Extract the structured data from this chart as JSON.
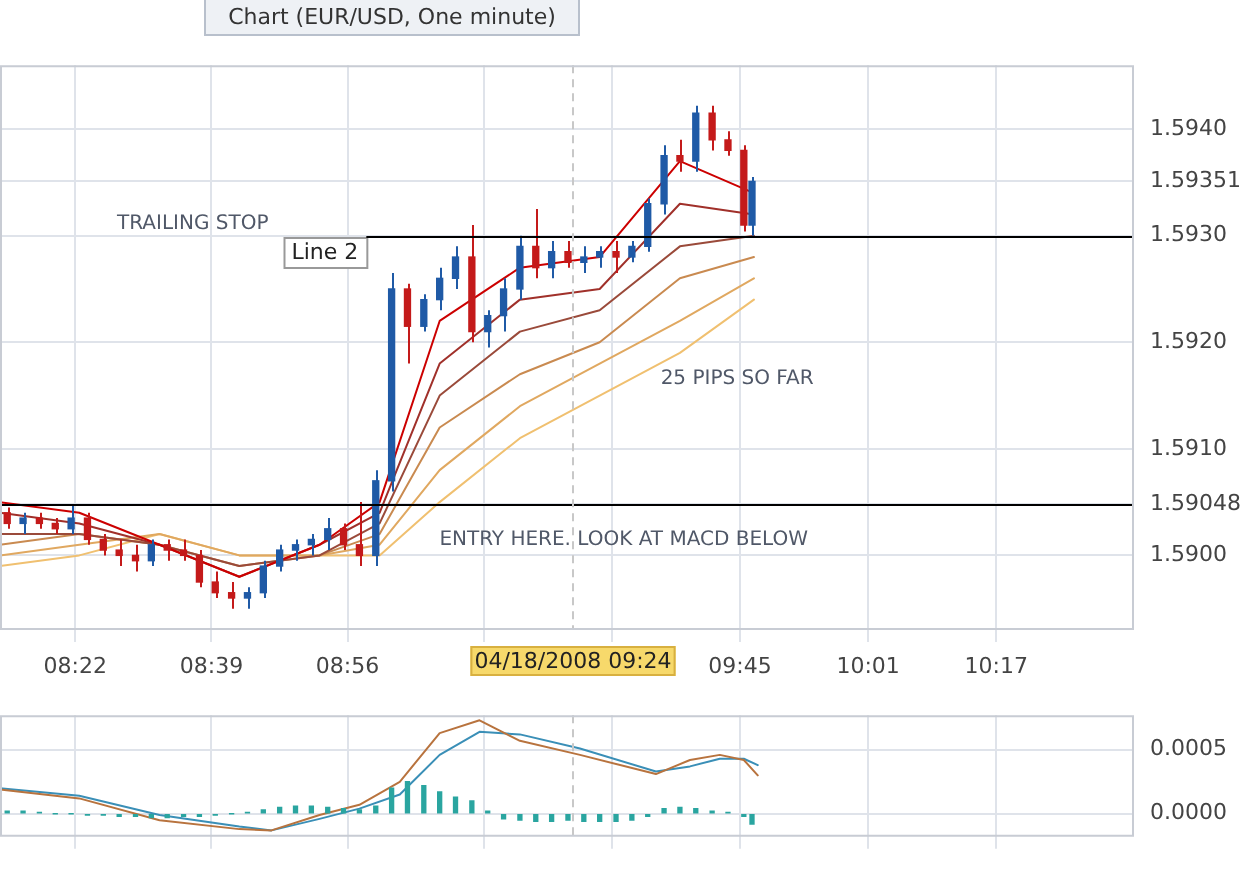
{
  "chart_data": [
    {
      "type": "candlestick",
      "title": "Chart (EUR/USD, One minute)",
      "x": [
        8.225,
        8.258,
        8.292,
        8.325,
        8.358,
        8.392,
        8.425,
        8.458,
        8.492,
        8.525,
        8.558,
        8.592,
        8.625,
        8.658,
        8.692,
        8.725,
        8.758,
        8.792,
        8.825,
        8.858,
        8.892,
        8.925,
        8.958,
        8.992,
        9.025,
        9.058,
        9.092,
        9.125,
        9.158,
        9.192,
        9.225,
        9.258,
        9.292,
        9.325,
        9.358,
        9.392,
        9.425,
        9.458,
        9.492,
        9.525,
        9.558,
        9.592,
        9.625,
        9.658,
        9.692,
        9.725,
        9.758,
        9.775
      ],
      "ohlc": [
        [
          1.5904,
          1.59045,
          1.59025,
          1.5903
        ],
        [
          1.5903,
          1.5904,
          1.5902,
          1.59035
        ],
        [
          1.59035,
          1.5904,
          1.59025,
          1.5903
        ],
        [
          1.5903,
          1.59035,
          1.5902,
          1.59025
        ],
        [
          1.59025,
          1.59048,
          1.5902,
          1.59035
        ],
        [
          1.59035,
          1.5904,
          1.5901,
          1.59015
        ],
        [
          1.59015,
          1.5902,
          1.59,
          1.59005
        ],
        [
          1.59005,
          1.59015,
          1.5899,
          1.59
        ],
        [
          1.59,
          1.5901,
          1.58985,
          1.58995
        ],
        [
          1.58995,
          1.59015,
          1.5899,
          1.5901
        ],
        [
          1.5901,
          1.59015,
          1.58995,
          1.59005
        ],
        [
          1.59005,
          1.59015,
          1.58995,
          1.59
        ],
        [
          1.59,
          1.59005,
          1.5897,
          1.58975
        ],
        [
          1.58975,
          1.58985,
          1.5896,
          1.58965
        ],
        [
          1.58965,
          1.58975,
          1.5895,
          1.5896
        ],
        [
          1.5896,
          1.5897,
          1.5895,
          1.58965
        ],
        [
          1.58965,
          1.58995,
          1.5896,
          1.5899
        ],
        [
          1.5899,
          1.5901,
          1.58985,
          1.59005
        ],
        [
          1.59005,
          1.59015,
          1.58995,
          1.5901
        ],
        [
          1.5901,
          1.5902,
          1.59,
          1.59015
        ],
        [
          1.59015,
          1.59035,
          1.59005,
          1.59025
        ],
        [
          1.59025,
          1.5903,
          1.59005,
          1.5901
        ],
        [
          1.5901,
          1.5905,
          1.5899,
          1.59
        ],
        [
          1.59,
          1.5908,
          1.5899,
          1.5907
        ],
        [
          1.5907,
          1.59265,
          1.5906,
          1.5925
        ],
        [
          1.5925,
          1.59255,
          1.5918,
          1.59215
        ],
        [
          1.59215,
          1.59245,
          1.5921,
          1.5924
        ],
        [
          1.5924,
          1.5927,
          1.5923,
          1.5926
        ],
        [
          1.5926,
          1.5929,
          1.5925,
          1.5928
        ],
        [
          1.5928,
          1.5931,
          1.592,
          1.5921
        ],
        [
          1.5921,
          1.5923,
          1.59195,
          1.59225
        ],
        [
          1.59225,
          1.5926,
          1.5921,
          1.5925
        ],
        [
          1.5925,
          1.593,
          1.5924,
          1.5929
        ],
        [
          1.5929,
          1.59325,
          1.5926,
          1.5927
        ],
        [
          1.5927,
          1.59295,
          1.5926,
          1.59285
        ],
        [
          1.59285,
          1.59295,
          1.5927,
          1.59275
        ],
        [
          1.59275,
          1.5929,
          1.59265,
          1.5928
        ],
        [
          1.5928,
          1.5929,
          1.5927,
          1.59285
        ],
        [
          1.59285,
          1.59295,
          1.59265,
          1.5928
        ],
        [
          1.5928,
          1.59295,
          1.59275,
          1.5929
        ],
        [
          1.5929,
          1.59335,
          1.59285,
          1.5933
        ],
        [
          1.5933,
          1.59385,
          1.5932,
          1.59375
        ],
        [
          1.59375,
          1.5939,
          1.5936,
          1.5937
        ],
        [
          1.5937,
          1.59422,
          1.5936,
          1.59415
        ],
        [
          1.59415,
          1.59422,
          1.5938,
          1.5939
        ],
        [
          1.5939,
          1.59398,
          1.59375,
          1.5938
        ],
        [
          1.5938,
          1.59385,
          1.59304,
          1.5931
        ],
        [
          1.5931,
          1.59355,
          1.593,
          1.59351
        ]
      ],
      "colors": [
        "#c41a1a",
        "#1f5aa6",
        "#c41a1a",
        "#c41a1a",
        "#1f5aa6",
        "#c41a1a",
        "#c41a1a",
        "#c41a1a",
        "#c41a1a",
        "#1f5aa6",
        "#c41a1a",
        "#c41a1a",
        "#c41a1a",
        "#c41a1a",
        "#c41a1a",
        "#1f5aa6",
        "#1f5aa6",
        "#1f5aa6",
        "#1f5aa6",
        "#1f5aa6",
        "#1f5aa6",
        "#c41a1a",
        "#c41a1a",
        "#1f5aa6",
        "#1f5aa6",
        "#c41a1a",
        "#1f5aa6",
        "#1f5aa6",
        "#1f5aa6",
        "#c41a1a",
        "#1f5aa6",
        "#1f5aa6",
        "#1f5aa6",
        "#c41a1a",
        "#1f5aa6",
        "#c41a1a",
        "#1f5aa6",
        "#1f5aa6",
        "#c41a1a",
        "#1f5aa6",
        "#1f5aa6",
        "#1f5aa6",
        "#c41a1a",
        "#1f5aa6",
        "#c41a1a",
        "#c41a1a",
        "#c41a1a",
        "#1f5aa6"
      ],
      "series": [
        {
          "type": "line",
          "color": "#cc0000",
          "x": [
            8.21,
            8.375,
            8.542,
            8.708,
            8.875,
            9.0,
            9.125,
            9.292,
            9.458,
            9.625,
            9.779
          ],
          "values": [
            1.5905,
            1.5904,
            1.5901,
            1.5898,
            1.5901,
            1.5905,
            1.5922,
            1.5927,
            1.5928,
            1.5937,
            1.5934
          ]
        },
        {
          "type": "line",
          "color": "#a0302a",
          "x": [
            8.21,
            8.375,
            8.542,
            8.708,
            8.875,
            9.0,
            9.125,
            9.292,
            9.458,
            9.625,
            9.779
          ],
          "values": [
            1.5904,
            1.5903,
            1.5901,
            1.5898,
            1.5901,
            1.5904,
            1.5918,
            1.5924,
            1.5925,
            1.5933,
            1.5932
          ]
        },
        {
          "type": "line",
          "color": "#9a4a3a",
          "x": [
            8.21,
            8.375,
            8.542,
            8.708,
            8.875,
            9.0,
            9.125,
            9.292,
            9.458,
            9.625,
            9.779
          ],
          "values": [
            1.5902,
            1.5902,
            1.5901,
            1.5899,
            1.59,
            1.5903,
            1.5915,
            1.5921,
            1.5923,
            1.5929,
            1.593
          ]
        },
        {
          "type": "line",
          "color": "#c98a50",
          "x": [
            8.21,
            8.375,
            8.542,
            8.708,
            8.875,
            9.0,
            9.125,
            9.292,
            9.458,
            9.625,
            9.779
          ],
          "values": [
            1.5901,
            1.5902,
            1.5901,
            1.5899,
            1.59,
            1.5902,
            1.5912,
            1.5917,
            1.592,
            1.5926,
            1.5928
          ]
        },
        {
          "type": "line",
          "color": "#e0a860",
          "x": [
            8.21,
            8.375,
            8.542,
            8.708,
            8.875,
            9.0,
            9.125,
            9.292,
            9.458,
            9.625,
            9.779
          ],
          "values": [
            1.59,
            1.5901,
            1.5902,
            1.59,
            1.59,
            1.5901,
            1.5908,
            1.5914,
            1.5918,
            1.5922,
            1.5926
          ]
        },
        {
          "type": "line",
          "color": "#f0c070",
          "x": [
            8.21,
            8.375,
            8.542,
            8.708,
            8.875,
            9.0,
            9.125,
            9.292,
            9.458,
            9.625,
            9.779
          ],
          "values": [
            1.5899,
            1.59,
            1.5902,
            1.59,
            1.59,
            1.59,
            1.5905,
            1.5911,
            1.5915,
            1.5919,
            1.5924
          ]
        }
      ],
      "marker": "none",
      "xlim": [
        8.21,
        10.57
      ],
      "xticks": [
        {
          "value": 8.3667,
          "label": "08:22"
        },
        {
          "value": 8.65,
          "label": "08:39"
        },
        {
          "value": 8.9333,
          "label": "08:56"
        },
        {
          "value": 9.2167,
          "label": null
        },
        {
          "value": 9.4833,
          "label": null
        },
        {
          "value": 9.75,
          "label": "09:45"
        },
        {
          "value": 10.0167,
          "label": "10:01"
        },
        {
          "value": 10.2833,
          "label": "10:17"
        }
      ],
      "ylim": [
        1.5893,
        1.5946
      ],
      "yticks": [
        {
          "value": 1.59,
          "label": "1.5900"
        },
        {
          "value": 1.59048,
          "label": "1.59048"
        },
        {
          "value": 1.591,
          "label": "1.5910"
        },
        {
          "value": 1.592,
          "label": "1.5920"
        },
        {
          "value": 1.593,
          "label": "1.5930"
        },
        {
          "value": 1.59351,
          "label": "1.59351"
        },
        {
          "value": 1.594,
          "label": "1.5940"
        }
      ],
      "grid": true,
      "ref_lines": [
        {
          "axis": "y",
          "value": 1.593,
          "label": "Line 2",
          "color": "#000000"
        },
        {
          "axis": "y",
          "value": 1.59048,
          "color": "#000000"
        },
        {
          "axis": "x",
          "value": 9.4,
          "label": "04/18/2008 09:24",
          "color": "#c8c8c8",
          "line_style": "dashed"
        }
      ],
      "annotations": [
        "TRAILING STOP",
        "25 PIPS SO FAR",
        "ENTRY HERE. LOOK AT MACD BELOW"
      ]
    },
    {
      "type": "line",
      "series": [
        {
          "type": "bar",
          "color": "#2aa5a0",
          "x": [
            8.225,
            8.258,
            8.292,
            8.325,
            8.358,
            8.392,
            8.425,
            8.458,
            8.492,
            8.525,
            8.558,
            8.592,
            8.625,
            8.658,
            8.692,
            8.725,
            8.758,
            8.792,
            8.825,
            8.858,
            8.892,
            8.925,
            8.958,
            8.992,
            9.025,
            9.058,
            9.092,
            9.125,
            9.158,
            9.192,
            9.225,
            9.258,
            9.292,
            9.325,
            9.358,
            9.392,
            9.425,
            9.458,
            9.492,
            9.525,
            9.558,
            9.592,
            9.625,
            9.658,
            9.692,
            9.725,
            9.758,
            9.775
          ],
          "values": [
            2e-05,
            2e-05,
            1e-05,
            0,
            0,
            -1e-05,
            -1e-05,
            -2e-05,
            -2e-05,
            -3e-05,
            -3e-05,
            -2e-05,
            -2e-05,
            -1e-05,
            0,
            1e-05,
            3e-05,
            5e-05,
            6e-05,
            6e-05,
            5e-05,
            4e-05,
            3e-05,
            6e-05,
            0.0002,
            0.00025,
            0.00022,
            0.00017,
            0.00013,
            0.0001,
            2e-05,
            -4e-05,
            -5e-05,
            -6e-05,
            -6e-05,
            -5e-05,
            -6e-05,
            -6e-05,
            -6e-05,
            -5e-05,
            -2e-05,
            4e-05,
            5e-05,
            4e-05,
            2e-05,
            1e-05,
            -2e-05,
            -8e-05
          ]
        },
        {
          "type": "line",
          "color": "#b8733e",
          "x": [
            8.21,
            8.375,
            8.542,
            8.708,
            8.775,
            8.875,
            8.958,
            9.042,
            9.125,
            9.208,
            9.292,
            9.417,
            9.575,
            9.646,
            9.708,
            9.758,
            9.787
          ],
          "values": [
            0.00019,
            0.00012,
            -5e-05,
            -0.00012,
            -0.00013,
            -1e-05,
            7e-05,
            0.00025,
            0.00063,
            0.00073,
            0.00057,
            0.00046,
            0.00031,
            0.00042,
            0.00046,
            0.00042,
            0.0003
          ]
        },
        {
          "type": "line",
          "color": "#3a8fb7",
          "x": [
            8.21,
            8.375,
            8.542,
            8.708,
            8.775,
            8.875,
            8.958,
            9.042,
            9.125,
            9.208,
            9.292,
            9.417,
            9.575,
            9.646,
            9.708,
            9.758,
            9.787
          ],
          "values": [
            0.0002,
            0.00014,
            -1e-05,
            -0.0001,
            -0.00013,
            -4e-05,
            4e-05,
            0.00015,
            0.00046,
            0.00064,
            0.00062,
            0.00051,
            0.00033,
            0.00037,
            0.00043,
            0.00043,
            0.00038
          ]
        }
      ],
      "marker": "none",
      "xlim": [
        8.21,
        10.57
      ],
      "xticks": [
        {
          "value": 8.3667,
          "label": null
        },
        {
          "value": 8.65,
          "label": null
        },
        {
          "value": 8.9333,
          "label": null
        },
        {
          "value": 9.2167,
          "label": null
        },
        {
          "value": 9.4833,
          "label": null
        },
        {
          "value": 9.75,
          "label": null
        },
        {
          "value": 10.0167,
          "label": null
        },
        {
          "value": 10.2833,
          "label": null
        }
      ],
      "ylim": [
        -0.00018,
        0.00077
      ],
      "yticks": [
        {
          "value": 0,
          "label": "0.0000"
        },
        {
          "value": 0.0005,
          "label": "0.0005"
        }
      ],
      "grid": true,
      "tick_labels": "y",
      "ref_lines": [
        {
          "axis": "x",
          "value": 9.4,
          "color": "#c8c8c8",
          "line_style": "dashed"
        }
      ]
    }
  ]
}
